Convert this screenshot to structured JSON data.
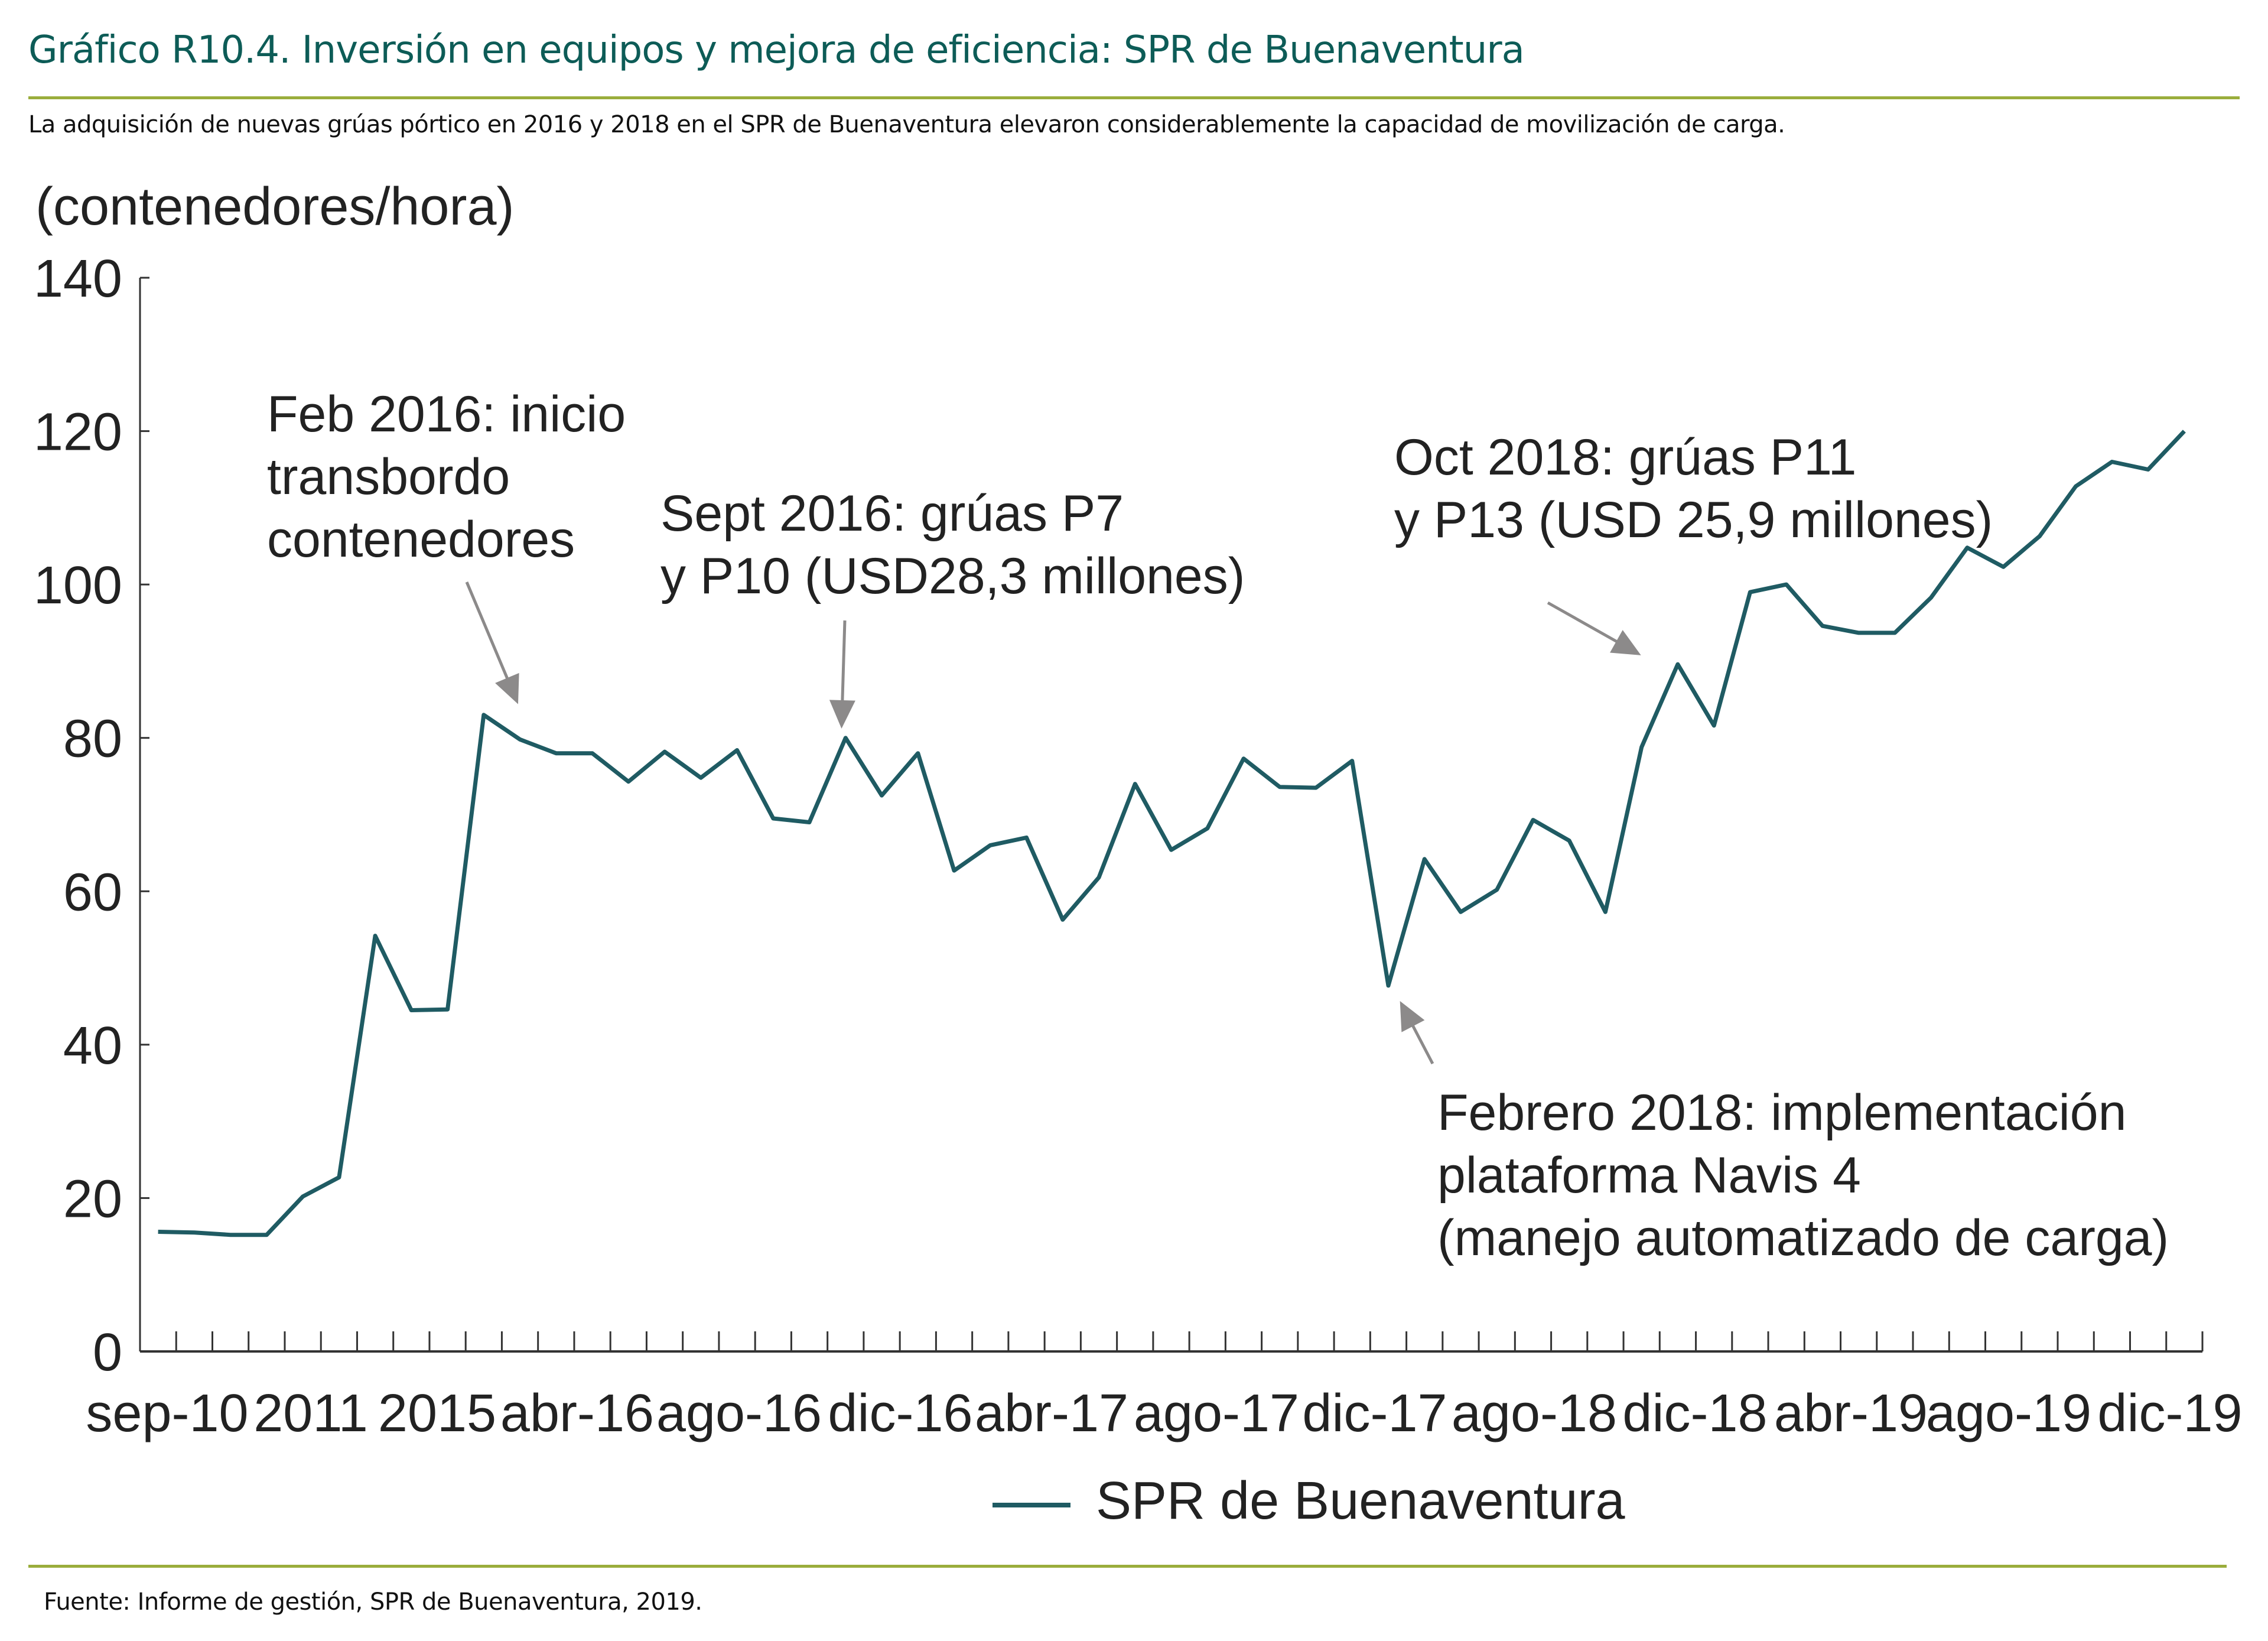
{
  "header": {
    "title": "Gráfico R10.4. Inversión en equipos y mejora de eficiencia: SPR de Buenaventura",
    "subtitle": "La adquisición de nuevas grúas pórtico en 2016 y 2018 en el SPR de Buenaventura elevaron considerablemente la capacidad de movilización de carga."
  },
  "footer": {
    "source": "Fuente: Informe de gestión, SPR de Buenaventura, 2019."
  },
  "colors": {
    "line": "#1f5b63",
    "accent_rule": "#9aad3c",
    "title": "#0d5c57",
    "arrow": "#8c8a8a"
  },
  "chart_data": {
    "type": "line",
    "title": "",
    "ylabel": "(contenedores/hora)",
    "xlabel": "",
    "ylim": [
      0,
      140
    ],
    "yticks": [
      0,
      20,
      40,
      60,
      80,
      100,
      120,
      140
    ],
    "xtick_labels": [
      "sep-10",
      "2011",
      "2015",
      "abr-16",
      "ago-16",
      "dic-16",
      "abr-17",
      "ago-17",
      "dic-17",
      "ago-18",
      "dic-18",
      "abr-19",
      "ago-19",
      "dic-19"
    ],
    "legend": {
      "position": "bottom-center",
      "entries": [
        "SPR de Buenaventura"
      ]
    },
    "grid": false,
    "series": [
      {
        "name": "SPR de Buenaventura",
        "values": [
          15.6,
          15.5,
          15.2,
          15.2,
          20.2,
          22.7,
          54.2,
          44.5,
          44.6,
          83,
          79.8,
          78,
          78,
          74.3,
          78.2,
          74.8,
          78.4,
          69.5,
          69,
          80,
          72.5,
          78,
          62.7,
          66,
          67,
          56.3,
          61.8,
          74,
          65.4,
          68.2,
          77.3,
          73.6,
          73.5,
          77,
          47.7,
          64.2,
          57.3,
          60.2,
          69.3,
          66.6,
          57.3,
          78.8,
          89.6,
          81.6,
          99,
          100,
          94.6,
          93.7,
          93.7,
          98.3,
          104.8,
          102.3,
          106.3,
          112.8,
          116,
          115,
          120
        ]
      }
    ],
    "annotations": [
      {
        "lines": [
          "Feb 2016: inicio",
          "transbordo",
          "contenedores"
        ],
        "target_index": 9
      },
      {
        "lines": [
          "Sept 2016: grúas P7",
          "y P10 (USD28,3 millones)"
        ],
        "target_index": 19
      },
      {
        "lines": [
          "Oct 2018: grúas P11",
          "y P13 (USD 25,9 millones)"
        ],
        "target_index": 41
      },
      {
        "lines": [
          "Febrero 2018: implementación",
          "plataforma Navis 4",
          "(manejo automatizado de carga)"
        ],
        "target_index": 34
      }
    ]
  }
}
